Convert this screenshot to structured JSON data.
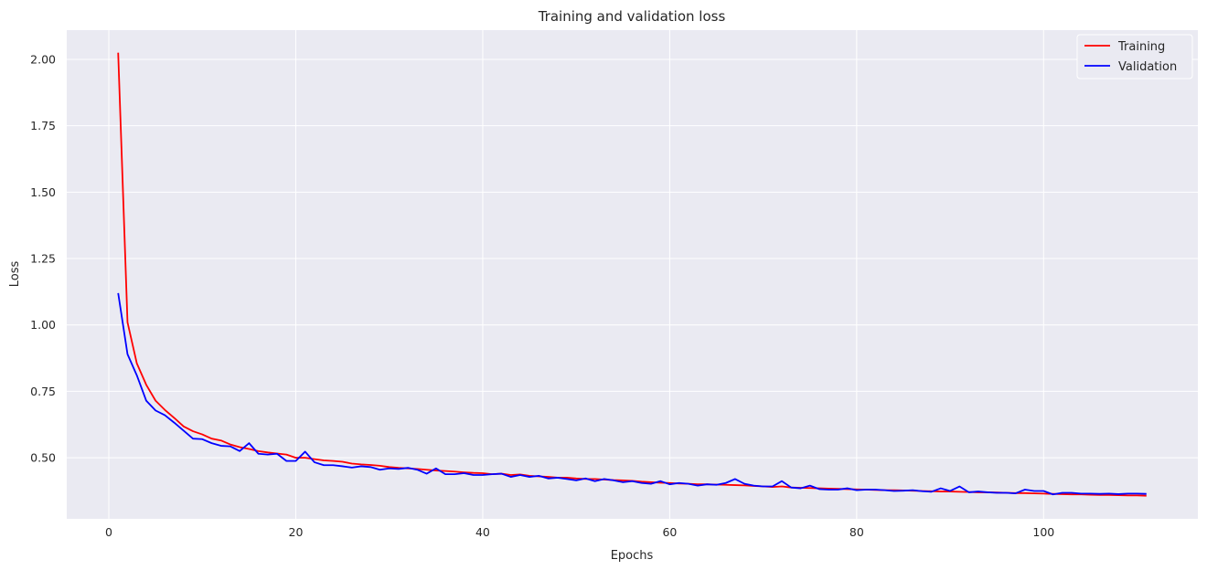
{
  "chart_data": {
    "type": "line",
    "title": "Training and validation loss",
    "xlabel": "Epochs",
    "ylabel": "Loss",
    "xlim": [
      -4.5,
      116.5
    ],
    "ylim": [
      0.27,
      2.11
    ],
    "xticks": [
      0,
      20,
      40,
      60,
      80,
      100
    ],
    "yticks": [
      0.5,
      0.75,
      1.0,
      1.25,
      1.5,
      1.75,
      2.0
    ],
    "ytick_labels": [
      "0.50",
      "0.75",
      "1.00",
      "1.25",
      "1.50",
      "1.75",
      "2.00"
    ],
    "grid": true,
    "legend_position": "top-right",
    "x": [
      1,
      2,
      3,
      4,
      5,
      6,
      7,
      8,
      9,
      10,
      11,
      12,
      13,
      14,
      15,
      16,
      17,
      18,
      19,
      20,
      21,
      22,
      23,
      24,
      25,
      26,
      27,
      28,
      29,
      30,
      31,
      32,
      33,
      34,
      35,
      36,
      37,
      38,
      39,
      40,
      41,
      42,
      43,
      44,
      45,
      46,
      47,
      48,
      49,
      50,
      51,
      52,
      53,
      54,
      55,
      56,
      57,
      58,
      59,
      60,
      61,
      62,
      63,
      64,
      65,
      66,
      67,
      68,
      69,
      70,
      71,
      72,
      73,
      74,
      75,
      76,
      77,
      78,
      79,
      80,
      81,
      82,
      83,
      84,
      85,
      86,
      87,
      88,
      89,
      90,
      91,
      92,
      93,
      94,
      95,
      96,
      97,
      98,
      99,
      100,
      101,
      102,
      103,
      104,
      105,
      106,
      107,
      108,
      109,
      110,
      111
    ],
    "series": [
      {
        "name": "Training",
        "color": "#ff0000",
        "values": [
          2.025,
          1.01,
          0.855,
          0.775,
          0.715,
          0.68,
          0.65,
          0.618,
          0.6,
          0.588,
          0.572,
          0.565,
          0.55,
          0.54,
          0.533,
          0.525,
          0.52,
          0.516,
          0.512,
          0.5,
          0.5,
          0.495,
          0.49,
          0.488,
          0.485,
          0.478,
          0.475,
          0.473,
          0.47,
          0.465,
          0.462,
          0.46,
          0.458,
          0.455,
          0.452,
          0.45,
          0.448,
          0.445,
          0.443,
          0.442,
          0.438,
          0.44,
          0.435,
          0.437,
          0.432,
          0.43,
          0.428,
          0.425,
          0.425,
          0.422,
          0.42,
          0.42,
          0.418,
          0.416,
          0.415,
          0.413,
          0.41,
          0.408,
          0.406,
          0.405,
          0.403,
          0.402,
          0.4,
          0.4,
          0.399,
          0.398,
          0.397,
          0.396,
          0.394,
          0.392,
          0.39,
          0.392,
          0.388,
          0.387,
          0.386,
          0.385,
          0.384,
          0.383,
          0.382,
          0.381,
          0.38,
          0.379,
          0.378,
          0.378,
          0.377,
          0.376,
          0.375,
          0.374,
          0.373,
          0.373,
          0.372,
          0.371,
          0.37,
          0.37,
          0.369,
          0.368,
          0.367,
          0.367,
          0.366,
          0.365,
          0.364,
          0.363,
          0.362,
          0.362,
          0.361,
          0.36,
          0.36,
          0.359,
          0.358,
          0.358,
          0.357
        ]
      },
      {
        "name": "Validation",
        "color": "#0000ff",
        "values": [
          1.12,
          0.89,
          0.81,
          0.715,
          0.678,
          0.66,
          0.632,
          0.602,
          0.572,
          0.57,
          0.555,
          0.545,
          0.543,
          0.525,
          0.555,
          0.515,
          0.512,
          0.515,
          0.488,
          0.488,
          0.523,
          0.483,
          0.472,
          0.472,
          0.468,
          0.463,
          0.468,
          0.465,
          0.455,
          0.46,
          0.458,
          0.462,
          0.455,
          0.44,
          0.46,
          0.438,
          0.438,
          0.442,
          0.435,
          0.435,
          0.438,
          0.44,
          0.428,
          0.435,
          0.428,
          0.432,
          0.422,
          0.425,
          0.42,
          0.415,
          0.422,
          0.412,
          0.42,
          0.415,
          0.408,
          0.412,
          0.405,
          0.402,
          0.412,
          0.4,
          0.405,
          0.402,
          0.395,
          0.4,
          0.398,
          0.405,
          0.42,
          0.402,
          0.395,
          0.392,
          0.392,
          0.412,
          0.388,
          0.385,
          0.395,
          0.382,
          0.38,
          0.38,
          0.385,
          0.378,
          0.38,
          0.38,
          0.378,
          0.375,
          0.376,
          0.378,
          0.374,
          0.372,
          0.385,
          0.375,
          0.392,
          0.37,
          0.373,
          0.37,
          0.368,
          0.368,
          0.366,
          0.38,
          0.375,
          0.375,
          0.362,
          0.368,
          0.368,
          0.365,
          0.365,
          0.364,
          0.365,
          0.363,
          0.365,
          0.365,
          0.364
        ]
      }
    ]
  }
}
